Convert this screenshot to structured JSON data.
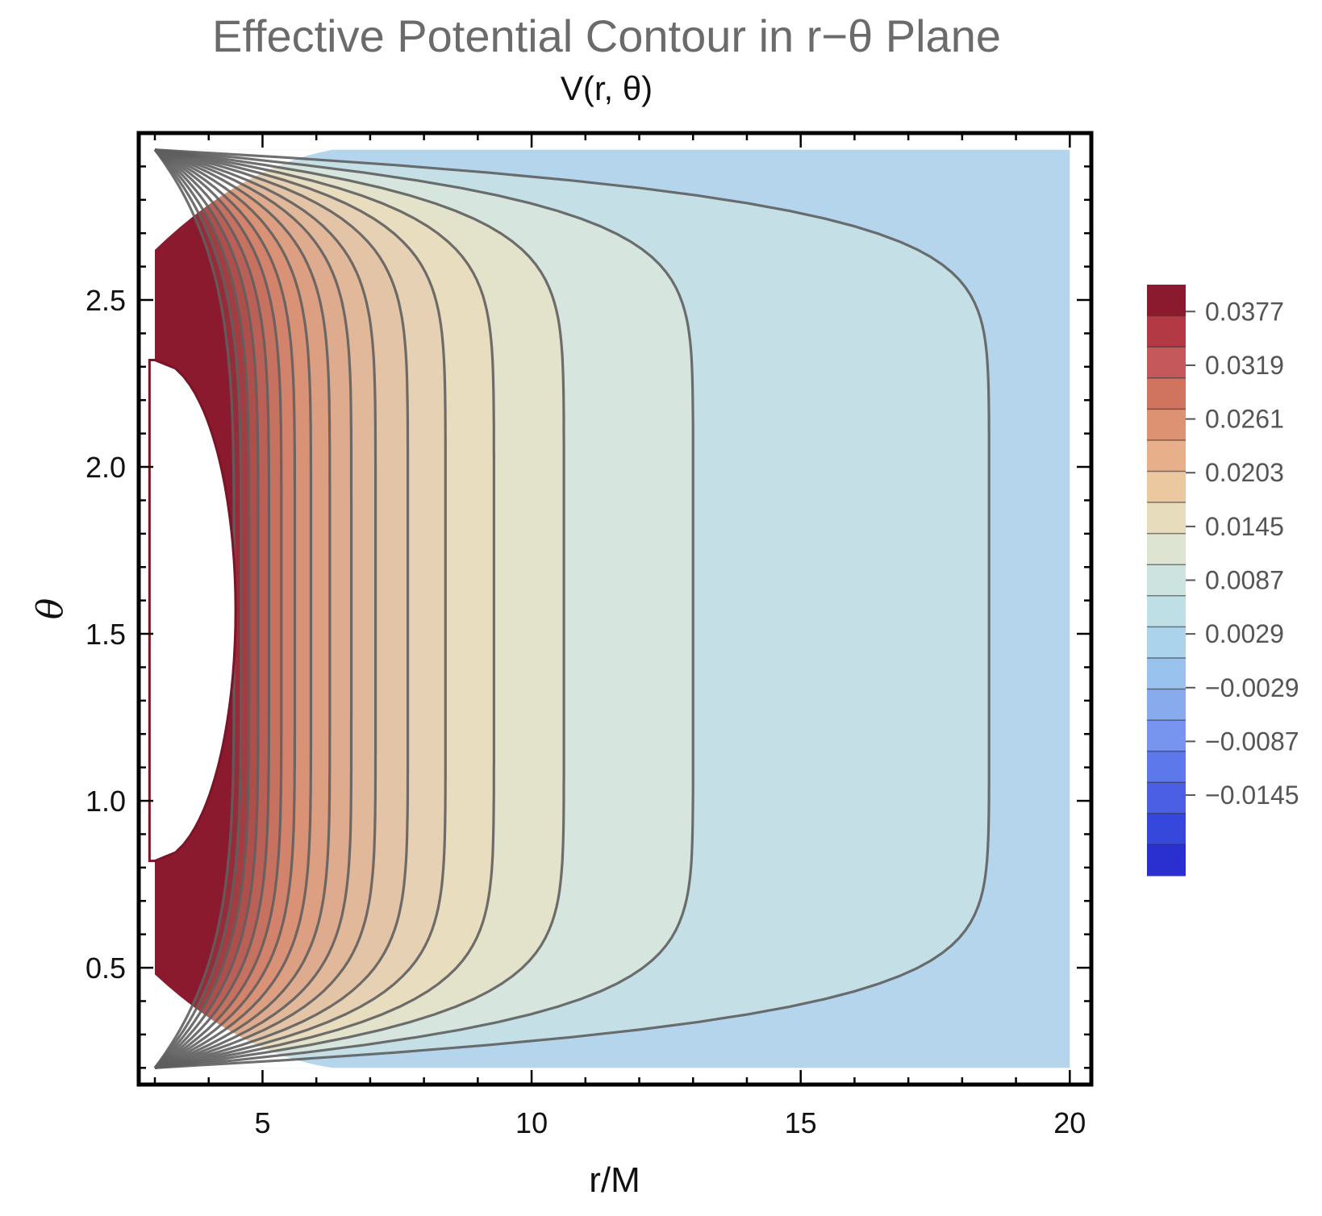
{
  "chart_data": {
    "type": "contour",
    "title": "Effective Potential Contour in r−θ Plane",
    "subtitle": "V(r, θ)",
    "xlabel": "r/M",
    "ylabel": "θ",
    "xlim": [
      2.7,
      20.4
    ],
    "ylim": [
      0.15,
      3.0
    ],
    "x_ticks": [
      5,
      10,
      15,
      20
    ],
    "x_tick_labels": [
      "5",
      "10",
      "15",
      "20"
    ],
    "y_ticks": [
      0.5,
      1.0,
      1.5,
      2.0,
      2.5
    ],
    "y_tick_labels": [
      "0.5",
      "1.0",
      "1.5",
      "2.0",
      "2.5"
    ],
    "domain": {
      "r": [
        3.0,
        20.0
      ],
      "theta": [
        0.2,
        2.95
      ]
    },
    "contours_r_at_equator": [
      18.5,
      13.0,
      10.6,
      9.3,
      8.4,
      7.7,
      7.1,
      6.65,
      6.25,
      5.9,
      5.6,
      5.35,
      5.12,
      4.92,
      4.75,
      4.6,
      4.47
    ],
    "excluded_region": {
      "description": "blank",
      "r_max_at_equator": 4.5,
      "theta_range": [
        0.82,
        2.32
      ]
    },
    "colorbar": {
      "labels": [
        "0.0377",
        "0.0319",
        "0.0261",
        "0.0203",
        "0.0145",
        "0.0087",
        "0.0029",
        "−0.0029",
        "−0.0087",
        "−0.0145"
      ],
      "label_values": [
        0.0377,
        0.0319,
        0.0261,
        0.0203,
        0.0145,
        0.0087,
        0.0029,
        -0.0029,
        -0.0087,
        -0.0145
      ],
      "colors": [
        "#8b1a2e",
        "#b33a44",
        "#c4585a",
        "#d0735f",
        "#dd9272",
        "#e7b08a",
        "#ecc8a1",
        "#e7dcbc",
        "#dde4d1",
        "#cde3df",
        "#bedfe6",
        "#acd3ec",
        "#9ac2ee",
        "#88abee",
        "#7794ee",
        "#5d78ea",
        "#4a5fe4",
        "#3648dc",
        "#2a2fcf"
      ]
    },
    "fill_colors": {
      "outer": "#b4d5ec",
      "band_1": "#c4e0e6",
      "band_2": "#d6e6df",
      "band_3": "#e3e2cb",
      "band_inner": "#8b1a2e"
    }
  }
}
